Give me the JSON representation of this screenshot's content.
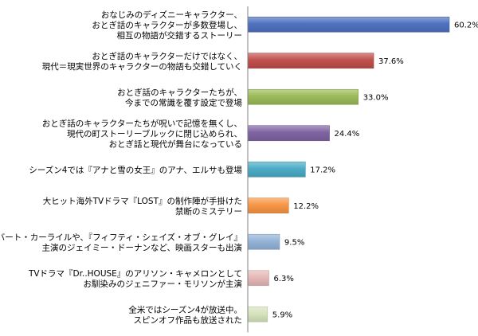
{
  "chart_data": {
    "type": "bar",
    "orientation": "horizontal",
    "title": "",
    "xlabel": "",
    "ylabel": "",
    "xlim": [
      0,
      60.2
    ],
    "grid": false,
    "legend": "none",
    "value_suffix": "%",
    "categories": [
      [
        "おなじみのディズニーキャラクター、",
        "おとぎ話のキャラクターが多数登場し、",
        "相互の物語が交錯するストーリー"
      ],
      [
        "おとぎ話のキャラクターだけではなく、",
        "現代＝現実世界のキャラクターの物語も交錯していく"
      ],
      [
        "おとぎ話のキャラクターたちが、",
        "今までの常識を覆す設定で登場"
      ],
      [
        "おとぎ話のキャラクターたちが呪いで記憶を無くし、",
        "現代の町ストーリーブルックに閉じ込められ、",
        "おとぎ話と現代が舞台になっている"
      ],
      [
        "シーズン4では『アナと雪の女王』のアナ、エルサも登場"
      ],
      [
        "大ヒット海外TVドラマ『LOST』の制作陣が手掛けた",
        "禁断のミステリー"
      ],
      [
        "ロバート・カーライルや、『フィフティ・シェイズ・オブ・グレイ』",
        "主演のジェイミー・ドーナンなど、映画スターも出演"
      ],
      [
        "TVドラマ『Dr..HOUSE』のアリソン・キャメロンとして",
        "お馴染みのジェニファー・モリソンが主演"
      ],
      [
        "全米ではシーズン4が放送中。",
        "スピンオフ作品も放送された"
      ]
    ],
    "values": [
      60.2,
      37.6,
      33.0,
      24.4,
      17.2,
      12.2,
      9.5,
      6.3,
      5.9
    ],
    "value_labels": [
      "60.2%",
      "37.6%",
      "33.0%",
      "24.4%",
      "17.2%",
      "12.2%",
      "9.5%",
      "6.3%",
      "5.9%"
    ],
    "colors": [
      "#4F72C0",
      "#C0504D",
      "#9BBB59",
      "#8064A2",
      "#4BACC6",
      "#F79646",
      "#95B3D7",
      "#E6B9B8",
      "#D7E4BD"
    ]
  }
}
